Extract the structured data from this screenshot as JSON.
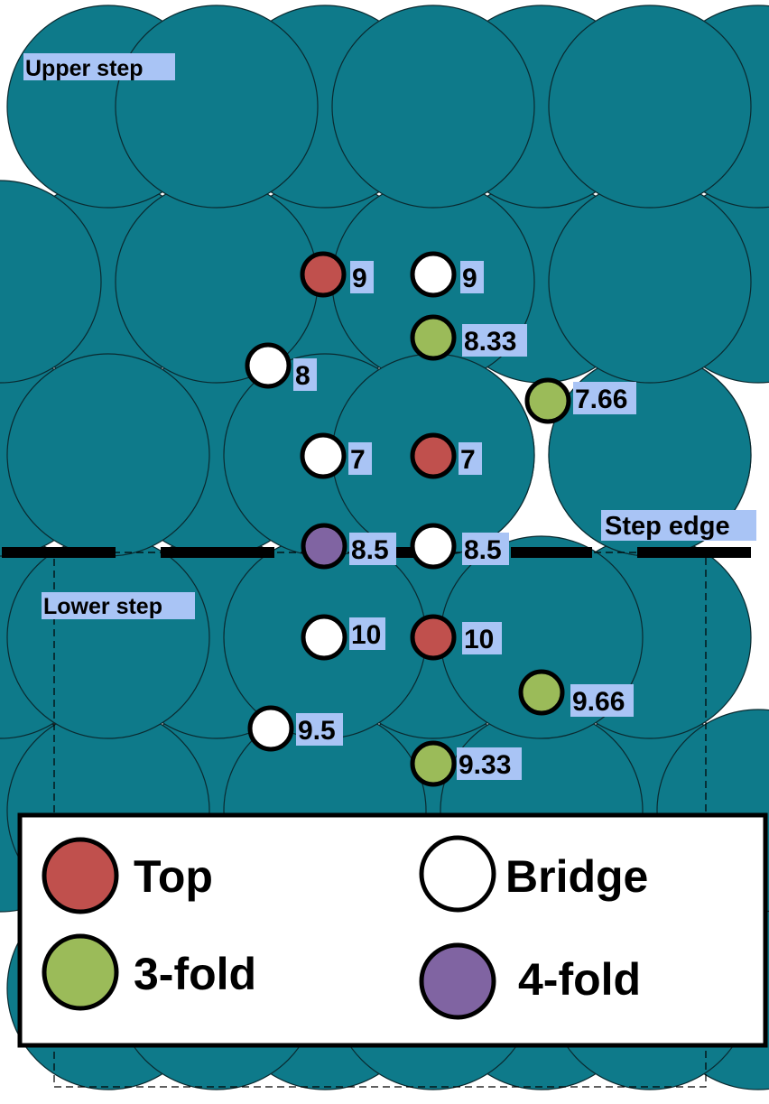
{
  "labels": {
    "upper": "Upper step",
    "lower": "Lower step",
    "edge": "Step edge"
  },
  "colors": {
    "atom": "#0e7a8a",
    "top": "#c0504d",
    "bridge": "#ffffff",
    "threefold": "#9bbb59",
    "fourfold": "#8064a2",
    "label_bg": "#a9c4f5"
  },
  "sites": [
    {
      "type": "top",
      "value": "9"
    },
    {
      "type": "bridge",
      "value": "9"
    },
    {
      "type": "threefold",
      "value": "8.33"
    },
    {
      "type": "bridge",
      "value": "8"
    },
    {
      "type": "threefold",
      "value": "7.66"
    },
    {
      "type": "bridge",
      "value": "7"
    },
    {
      "type": "top",
      "value": "7"
    },
    {
      "type": "fourfold",
      "value": "8.5"
    },
    {
      "type": "bridge",
      "value": "8.5"
    },
    {
      "type": "bridge",
      "value": "10"
    },
    {
      "type": "top",
      "value": "10"
    },
    {
      "type": "threefold",
      "value": "9.66"
    },
    {
      "type": "bridge",
      "value": "9.5"
    },
    {
      "type": "threefold",
      "value": "9.33"
    }
  ],
  "legend": [
    {
      "type": "top",
      "label": "Top"
    },
    {
      "type": "bridge",
      "label": "Bridge"
    },
    {
      "type": "threefold",
      "label": "3-fold"
    },
    {
      "type": "fourfold",
      "label": "4-fold"
    }
  ]
}
